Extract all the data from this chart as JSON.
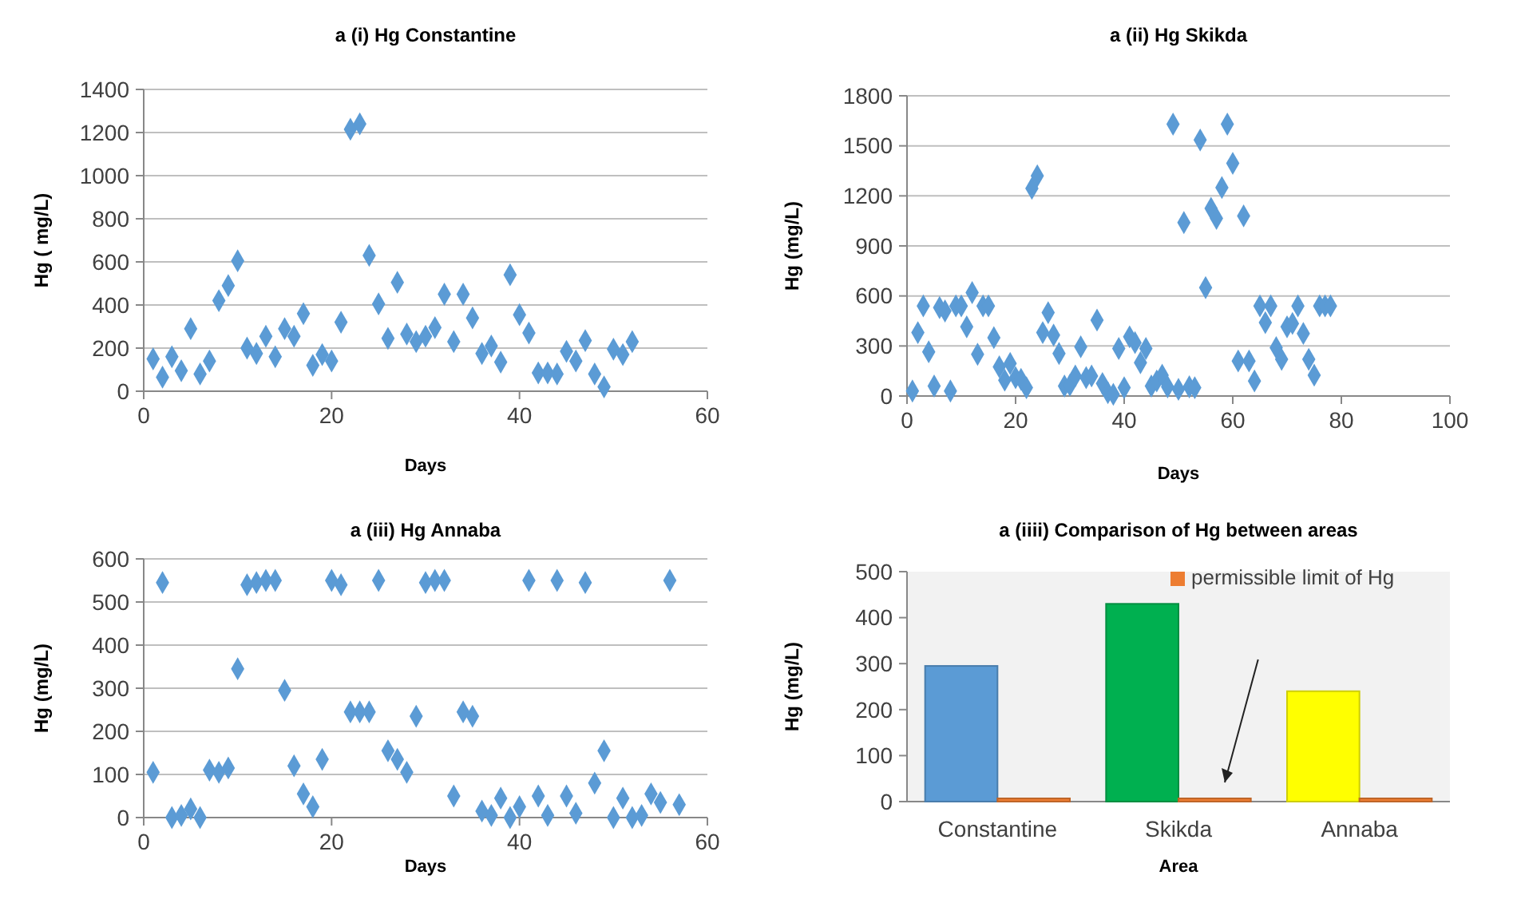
{
  "chart_data": [
    {
      "type": "scatter",
      "title": "a (i)  Hg Constantine",
      "xlabel": "Days",
      "ylabel": "Hg ( mg/L)",
      "xlim": [
        0,
        60
      ],
      "xticks": [
        0,
        20,
        40,
        60
      ],
      "ylim": [
        0,
        1400
      ],
      "yticks": [
        0,
        200,
        400,
        600,
        800,
        1000,
        1200,
        1400
      ],
      "grid": "y",
      "marker": "diamond",
      "series": [
        {
          "color": "#5b9bd5",
          "x": [
            1,
            2,
            3,
            4,
            5,
            6,
            7,
            8,
            9,
            10,
            11,
            12,
            13,
            14,
            15,
            16,
            17,
            18,
            19,
            20,
            21,
            22,
            23,
            24,
            25,
            26,
            27,
            28,
            29,
            30,
            31,
            32,
            33,
            34,
            35,
            36,
            37,
            38,
            39,
            40,
            41,
            42,
            43,
            44,
            45,
            46,
            47,
            48,
            49,
            50,
            51,
            52
          ],
          "values": [
            150,
            65,
            160,
            95,
            290,
            80,
            140,
            420,
            490,
            605,
            200,
            175,
            255,
            160,
            290,
            255,
            360,
            120,
            170,
            140,
            320,
            1215,
            1240,
            630,
            405,
            245,
            505,
            265,
            230,
            255,
            295,
            450,
            230,
            450,
            340,
            175,
            210,
            135,
            540,
            355,
            270,
            85,
            85,
            80,
            185,
            140,
            235,
            80,
            20,
            195,
            170,
            230
          ]
        }
      ]
    },
    {
      "type": "scatter",
      "title": "a (ii) Hg Skikda",
      "xlabel": "Days",
      "ylabel": "Hg  (mg/L)",
      "xlim": [
        0,
        100
      ],
      "xticks": [
        0,
        20,
        40,
        60,
        80,
        100
      ],
      "ylim": [
        0,
        1800
      ],
      "yticks": [
        0,
        300,
        600,
        900,
        1200,
        1500,
        1800
      ],
      "grid": "y",
      "marker": "diamond",
      "series": [
        {
          "color": "#5b9bd5",
          "x": [
            1,
            2,
            3,
            4,
            5,
            6,
            7,
            8,
            9,
            10,
            11,
            12,
            13,
            14,
            15,
            16,
            17,
            18,
            19,
            20,
            21,
            22,
            23,
            24,
            25,
            26,
            27,
            28,
            29,
            30,
            31,
            32,
            33,
            34,
            35,
            36,
            37,
            38,
            39,
            40,
            41,
            42,
            43,
            44,
            45,
            46,
            47,
            48,
            49,
            50,
            51,
            52,
            53,
            54,
            55,
            56,
            57,
            58,
            59,
            60,
            61,
            62,
            63,
            64,
            65,
            66,
            67,
            68,
            69,
            70,
            71,
            72,
            73,
            74,
            75,
            76,
            77,
            78
          ],
          "values": [
            30,
            380,
            540,
            265,
            60,
            530,
            510,
            30,
            540,
            540,
            415,
            620,
            250,
            540,
            540,
            350,
            175,
            95,
            195,
            110,
            100,
            50,
            1245,
            1320,
            380,
            500,
            365,
            255,
            60,
            65,
            120,
            295,
            110,
            120,
            455,
            75,
            20,
            10,
            285,
            50,
            355,
            320,
            200,
            285,
            60,
            90,
            125,
            55,
            1630,
            40,
            1040,
            55,
            50,
            1535,
            650,
            1125,
            1065,
            1250,
            1630,
            1395,
            210,
            1080,
            210,
            90,
            540,
            440,
            540,
            290,
            220,
            415,
            435,
            540,
            375,
            220,
            125,
            540,
            540,
            540
          ]
        }
      ]
    },
    {
      "type": "scatter",
      "title": "a (iii) Hg Annaba",
      "xlabel": "Days",
      "ylabel": "Hg (mg/L)",
      "xlim": [
        0,
        60
      ],
      "xticks": [
        0,
        20,
        40,
        60
      ],
      "ylim": [
        0,
        600
      ],
      "yticks": [
        0,
        100,
        200,
        300,
        400,
        500,
        600
      ],
      "grid": "y",
      "marker": "diamond",
      "series": [
        {
          "color": "#5b9bd5",
          "x": [
            1,
            2,
            3,
            4,
            5,
            6,
            7,
            8,
            9,
            10,
            11,
            12,
            13,
            14,
            15,
            16,
            17,
            18,
            19,
            20,
            21,
            22,
            23,
            24,
            25,
            26,
            27,
            28,
            29,
            30,
            31,
            32,
            33,
            34,
            35,
            36,
            37,
            38,
            39,
            40,
            41,
            42,
            43,
            44,
            45,
            46,
            47,
            48,
            49,
            50,
            51,
            52,
            53,
            54,
            55,
            56,
            57
          ],
          "values": [
            105,
            545,
            0,
            5,
            20,
            0,
            110,
            105,
            115,
            345,
            540,
            545,
            550,
            550,
            295,
            120,
            55,
            25,
            135,
            550,
            540,
            245,
            245,
            245,
            550,
            155,
            135,
            105,
            235,
            545,
            550,
            550,
            50,
            245,
            235,
            15,
            5,
            45,
            0,
            25,
            550,
            50,
            5,
            550,
            50,
            10,
            545,
            80,
            155,
            0,
            45,
            0,
            5,
            55,
            35,
            550,
            30
          ]
        }
      ]
    },
    {
      "type": "bar",
      "title": "a (iiii) Comparison of Hg between areas",
      "xlabel": "Area",
      "ylabel": "Hg  (mg/L)",
      "categories": [
        "Constantine",
        "Skikda",
        "Annaba"
      ],
      "ylim": [
        0,
        500
      ],
      "yticks": [
        0,
        100,
        200,
        300,
        400,
        500
      ],
      "grid": false,
      "legend": "top right",
      "series": [
        {
          "colors": [
            "#5b9bd5",
            "#00b050",
            "#ffff00"
          ],
          "values": [
            295,
            430,
            240
          ]
        },
        {
          "name": "permissible limit of Hg",
          "color": "#ed7d31",
          "values": [
            0,
            0,
            0
          ]
        }
      ]
    }
  ]
}
